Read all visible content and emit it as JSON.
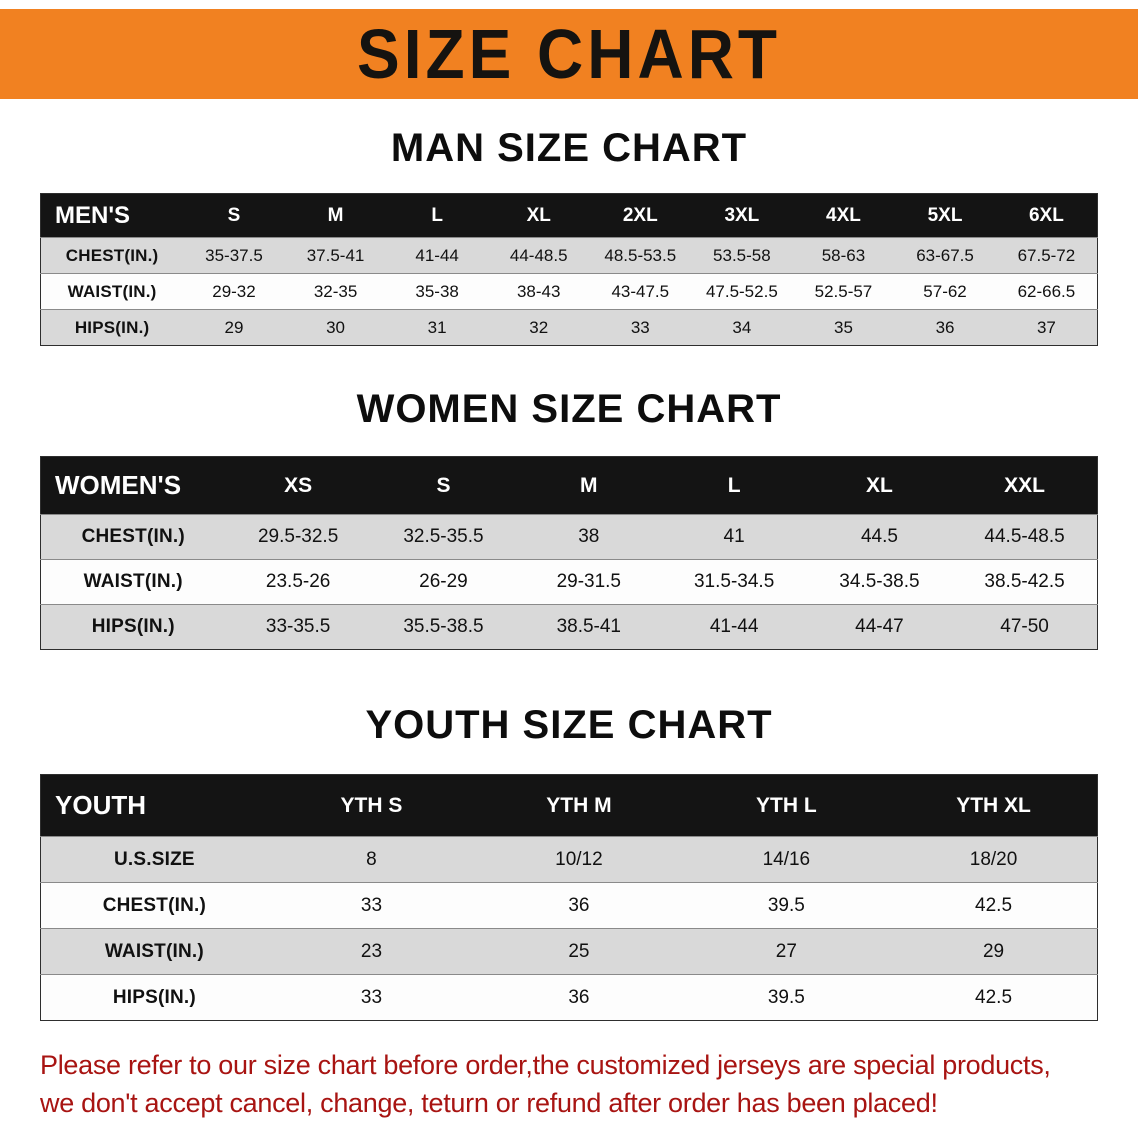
{
  "banner": {
    "title": "SIZE CHART"
  },
  "colors": {
    "banner_bg": "#f18121",
    "table_header_bg": "#141414",
    "row_shade": "#d9d9d9",
    "disclaimer_text": "#a81412"
  },
  "sections": [
    {
      "heading": "MAN SIZE CHART",
      "table": {
        "header": [
          "MEN'S",
          "S",
          "M",
          "L",
          "XL",
          "2XL",
          "3XL",
          "4XL",
          "5XL",
          "6XL"
        ],
        "rows": [
          {
            "label": "CHEST(IN.)",
            "values": [
              "35-37.5",
              "37.5-41",
              "41-44",
              "44-48.5",
              "48.5-53.5",
              "53.5-58",
              "58-63",
              "63-67.5",
              "67.5-72"
            ]
          },
          {
            "label": "WAIST(IN.)",
            "values": [
              "29-32",
              "32-35",
              "35-38",
              "38-43",
              "43-47.5",
              "47.5-52.5",
              "52.5-57",
              "57-62",
              "62-66.5"
            ]
          },
          {
            "label": "HIPS(IN.)",
            "values": [
              "29",
              "30",
              "31",
              "32",
              "33",
              "34",
              "35",
              "36",
              "37"
            ]
          }
        ]
      }
    },
    {
      "heading": "WOMEN SIZE CHART",
      "table": {
        "header": [
          "WOMEN'S",
          "XS",
          "S",
          "M",
          "L",
          "XL",
          "XXL"
        ],
        "rows": [
          {
            "label": "CHEST(IN.)",
            "values": [
              "29.5-32.5",
              "32.5-35.5",
              "38",
              "41",
              "44.5",
              "44.5-48.5"
            ]
          },
          {
            "label": "WAIST(IN.)",
            "values": [
              "23.5-26",
              "26-29",
              "29-31.5",
              "31.5-34.5",
              "34.5-38.5",
              "38.5-42.5"
            ]
          },
          {
            "label": "HIPS(IN.)",
            "values": [
              "33-35.5",
              "35.5-38.5",
              "38.5-41",
              "41-44",
              "44-47",
              "47-50"
            ]
          }
        ]
      }
    },
    {
      "heading": "YOUTH SIZE CHART",
      "table": {
        "header": [
          "YOUTH",
          "YTH S",
          "YTH M",
          "YTH L",
          "YTH XL"
        ],
        "rows": [
          {
            "label": "U.S.SIZE",
            "values": [
              "8",
              "10/12",
              "14/16",
              "18/20"
            ]
          },
          {
            "label": "CHEST(IN.)",
            "values": [
              "33",
              "36",
              "39.5",
              "42.5"
            ]
          },
          {
            "label": "WAIST(IN.)",
            "values": [
              "23",
              "25",
              "27",
              "29"
            ]
          },
          {
            "label": "HIPS(IN.)",
            "values": [
              "33",
              "36",
              "39.5",
              "42.5"
            ]
          }
        ]
      }
    }
  ],
  "disclaimer": {
    "line1": "Please refer to our size chart before order,the customized jerseys are special products,",
    "line2": "we don't accept cancel, change, teturn or refund after order has been placed!"
  }
}
